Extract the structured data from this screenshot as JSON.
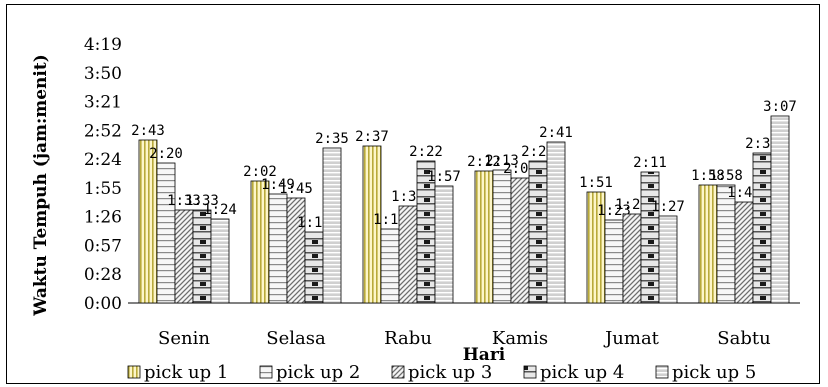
{
  "chart_data": {
    "type": "bar",
    "xlabel": "Hari",
    "ylabel": "Waktu Tempuh (jam:menit)",
    "yticks": [
      "0:00",
      "0:28",
      "0:57",
      "1:26",
      "1:55",
      "2:24",
      "2:52",
      "3:21",
      "3:50",
      "4:19"
    ],
    "ylim_minutes": [
      0,
      259
    ],
    "categories": [
      "Senin",
      "Selasa",
      "Rabu",
      "Kamis",
      "Jumat",
      "Sabtu"
    ],
    "legend_position": "bottom",
    "series": [
      {
        "name": "pick up 1",
        "pattern": "vertical-yellow",
        "values": [
          163,
          122,
          157,
          132,
          111,
          118
        ],
        "labels": [
          "2:43",
          "2:02",
          "2:37",
          "2:12",
          "1:51",
          "1:58"
        ]
      },
      {
        "name": "pick up 2",
        "pattern": "horizontal-light",
        "values": [
          140,
          109,
          74,
          133,
          83,
          118
        ],
        "labels": [
          "2:20",
          "1:49",
          "1:14",
          "2:13",
          "1:23",
          "1:58"
        ]
      },
      {
        "name": "pick up 3",
        "pattern": "diagonal",
        "values": [
          93,
          105,
          97,
          125,
          89,
          101
        ],
        "labels": [
          "1:33",
          "1:45",
          "1:37",
          "2:05",
          "1:29",
          "1:41"
        ]
      },
      {
        "name": "pick up 4",
        "pattern": "brick-dark",
        "values": [
          93,
          71,
          142,
          142,
          131,
          150
        ],
        "labels": [
          "1:33",
          "1:11",
          "2:22",
          "2:22",
          "2:11",
          "2:30"
        ]
      },
      {
        "name": "pick up 5",
        "pattern": "horizontal-gray",
        "values": [
          84,
          155,
          117,
          161,
          87,
          187
        ],
        "labels": [
          "1:24",
          "2:35",
          "1:57",
          "2:41",
          "1:27",
          "3:07"
        ]
      }
    ]
  }
}
